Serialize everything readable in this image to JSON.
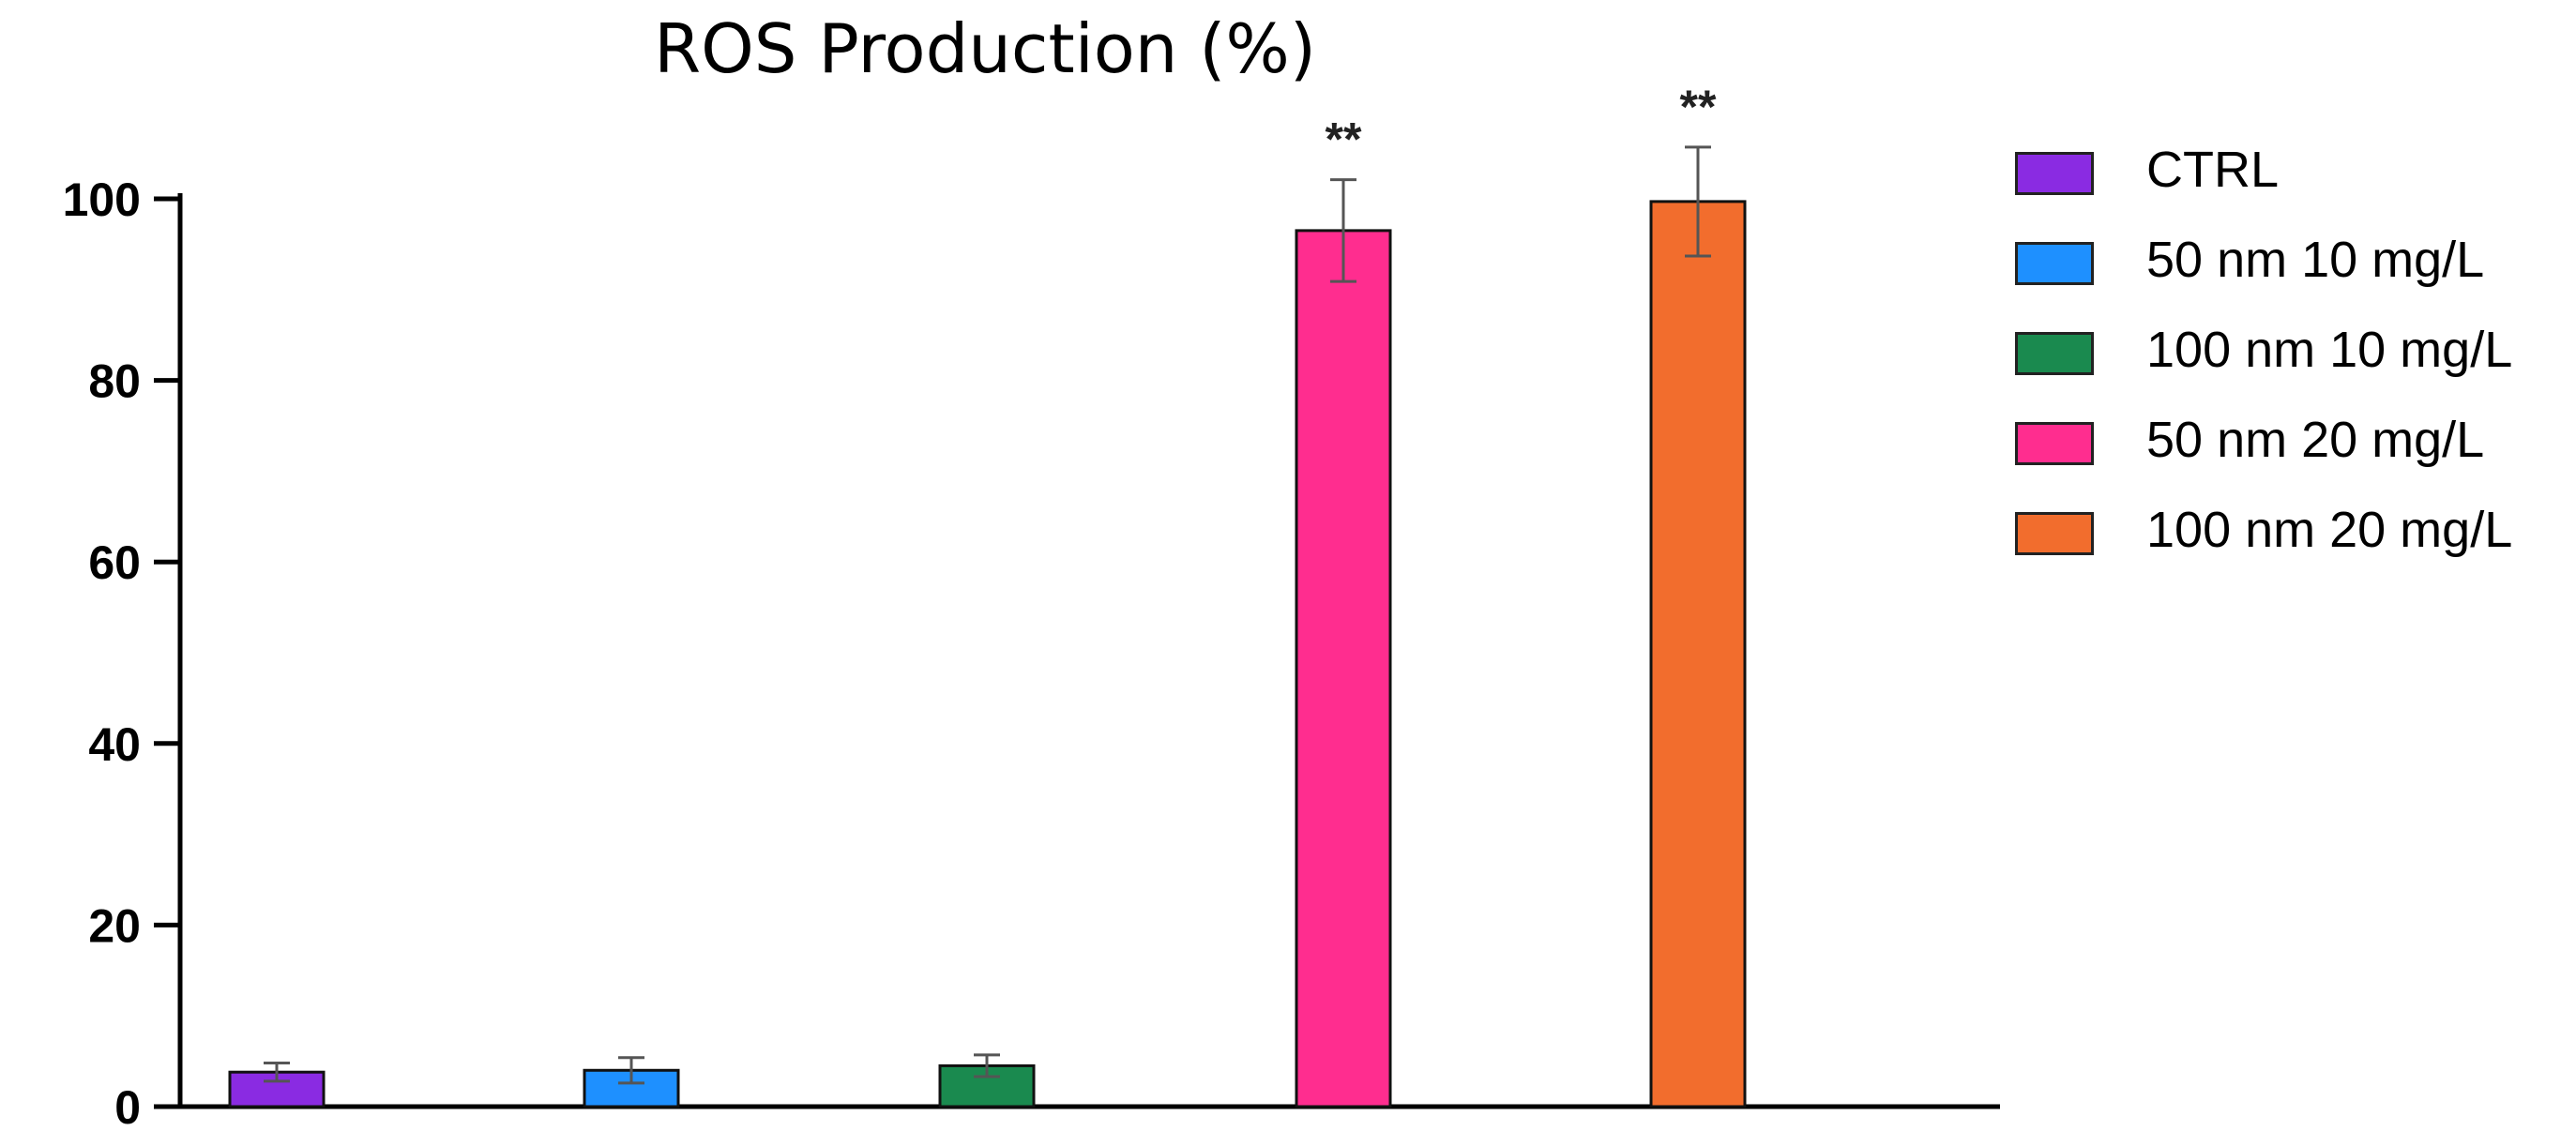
{
  "chart_data": {
    "type": "bar",
    "title": "ROS Production (%)",
    "xlabel": "",
    "ylabel": "",
    "ylim": [
      0,
      100
    ],
    "yticks": [
      "0",
      "20",
      "40",
      "60",
      "80",
      "100"
    ],
    "categories": [
      "CTRL",
      "50 nm 10 mg/L",
      "100 nm 10 mg/L",
      "50 nm 20 mg/L",
      "100 nm 20 mg/L"
    ],
    "values": [
      3.8,
      4.0,
      4.5,
      96.5,
      99.7
    ],
    "errors": [
      1.0,
      1.4,
      1.2,
      5.6,
      6.0
    ],
    "significance": [
      "",
      "",
      "",
      "**",
      "**"
    ],
    "colors": [
      "#8a2be2",
      "#1e90ff",
      "#1a8a4f",
      "#ff2d8f",
      "#f26d2d"
    ],
    "legend_position": "right",
    "grid": false
  }
}
